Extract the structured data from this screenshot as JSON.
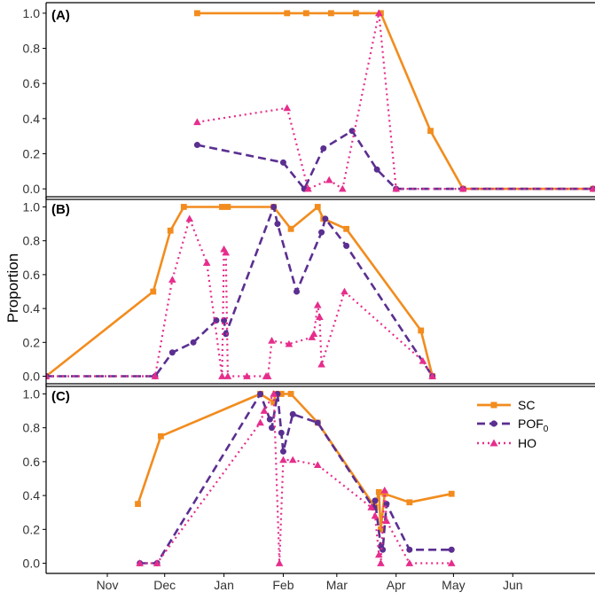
{
  "ylabel": "Proportion",
  "colors": {
    "SC": "#f28c1e",
    "POF0": "#5b2f91",
    "HO": "#e62d8c",
    "axis": "#000000",
    "tick_text": "#333333"
  },
  "legend": {
    "position": "top-right of panel C",
    "entries": [
      {
        "key": "SC",
        "label": "SC"
      },
      {
        "key": "POF0",
        "label_main": "POF",
        "label_sub": "0"
      },
      {
        "key": "HO",
        "label": "HO"
      }
    ]
  },
  "chart_data": {
    "type": "line",
    "x_axis": {
      "units": "day of season (0 = Nov 1)",
      "range": [
        -32,
        255
      ],
      "tick_labels": [
        "Nov",
        "Dec",
        "Jan",
        "Feb",
        "Mar",
        "Apr",
        "May",
        "Jun"
      ],
      "tick_values": [
        0,
        30,
        61,
        92,
        120,
        151,
        181,
        212
      ]
    },
    "y_axis": {
      "range": [
        -0.06,
        1.06
      ],
      "tick_labels": [
        "0.0",
        "0.2",
        "0.4",
        "0.6",
        "0.8",
        "1.0"
      ],
      "tick_values": [
        0,
        0.2,
        0.4,
        0.6,
        0.8,
        1.0
      ]
    },
    "grid": false,
    "panels": [
      {
        "label": "(A)",
        "series": [
          {
            "name": "SC",
            "x": [
              47,
              94,
              104,
              117,
              130,
              143,
              169,
              186,
              254
            ],
            "y": [
              1.0,
              1.0,
              1.0,
              1.0,
              1.0,
              1.0,
              0.33,
              0.0,
              0.0
            ]
          },
          {
            "name": "POF0",
            "x": [
              47,
              92,
              103,
              113,
              128,
              141,
              151,
              186,
              254
            ],
            "y": [
              0.25,
              0.15,
              0.0,
              0.23,
              0.33,
              0.11,
              0.0,
              0.0,
              0.0
            ]
          },
          {
            "name": "HO",
            "x": [
              47,
              94,
              105,
              116,
              123,
              142,
              151,
              186,
              254
            ],
            "y": [
              0.38,
              0.46,
              0.0,
              0.05,
              0.0,
              1.0,
              0.0,
              0.0,
              0.0
            ]
          }
        ]
      },
      {
        "label": "(B)",
        "series": [
          {
            "name": "SC",
            "x": [
              -32,
              24,
              33,
              40,
              60,
              63,
              87,
              96,
              110,
              113,
              125,
              164,
              170
            ],
            "y": [
              0.0,
              0.5,
              0.86,
              1.0,
              1.0,
              1.0,
              1.0,
              0.87,
              1.0,
              0.93,
              0.87,
              0.27,
              0.0
            ]
          },
          {
            "name": "POF0",
            "x": [
              -32,
              25,
              34,
              45,
              57,
              61,
              62,
              87,
              89,
              99,
              112,
              114,
              125,
              170
            ],
            "y": [
              0.0,
              0.0,
              0.14,
              0.2,
              0.33,
              0.33,
              0.25,
              1.0,
              0.9,
              0.5,
              0.85,
              0.93,
              0.77,
              0.0
            ]
          },
          {
            "name": "HO",
            "x": [
              -32,
              25,
              34,
              43,
              52,
              60,
              61,
              62,
              63,
              73,
              83,
              84,
              86,
              95,
              107,
              108,
              110,
              111,
              112,
              124,
              165,
              170
            ],
            "y": [
              0.0,
              0.0,
              0.57,
              0.93,
              0.67,
              0.0,
              0.75,
              0.73,
              0.0,
              0.0,
              0.0,
              0.0,
              0.21,
              0.19,
              0.23,
              0.25,
              0.42,
              0.35,
              0.07,
              0.5,
              0.09,
              0.0
            ]
          }
        ]
      },
      {
        "label": "(C)",
        "series": [
          {
            "name": "SC",
            "x": [
              16,
              28,
              80,
              87,
              88,
              91,
              96,
              110,
              140,
              142,
              143,
              145,
              158,
              180
            ],
            "y": [
              0.35,
              0.75,
              1.0,
              0.95,
              1.0,
              1.0,
              1.0,
              0.83,
              0.33,
              0.42,
              0.2,
              0.41,
              0.36,
              0.41
            ]
          },
          {
            "name": "POF0",
            "x": [
              17,
              26,
              80,
              85,
              86,
              89,
              91,
              92,
              97,
              110,
              139,
              140,
              143,
              144,
              146,
              158,
              180
            ],
            "y": [
              0.0,
              0.0,
              1.0,
              0.85,
              0.8,
              1.0,
              0.77,
              0.66,
              0.88,
              0.83,
              0.33,
              0.37,
              0.1,
              0.08,
              0.35,
              0.08,
              0.08
            ],
            "_note": ""
          },
          {
            "name": "HO",
            "x": [
              17,
              26,
              80,
              82,
              87,
              90,
              92,
              97,
              110,
              138,
              140,
              142,
              143,
              145,
              146,
              158,
              180
            ],
            "y": [
              0.0,
              0.0,
              0.83,
              0.9,
              1.0,
              0.0,
              0.61,
              0.61,
              0.58,
              0.33,
              0.28,
              0.05,
              0.0,
              0.43,
              0.25,
              0.0,
              0.0
            ]
          }
        ]
      }
    ]
  }
}
